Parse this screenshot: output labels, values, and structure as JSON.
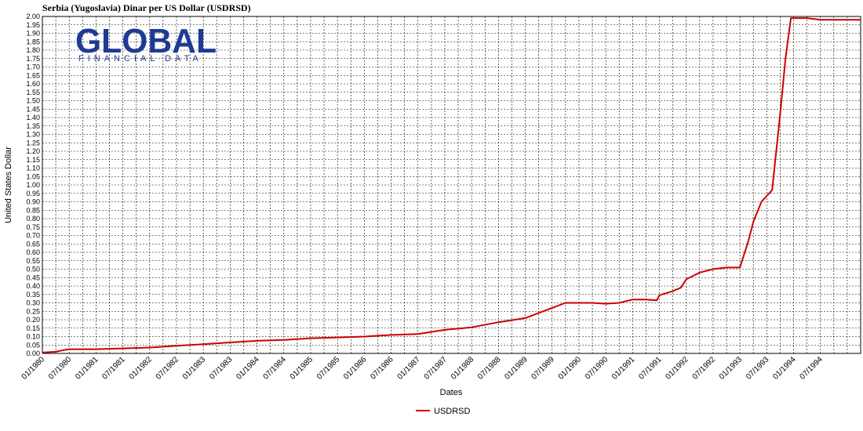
{
  "chart_data": {
    "type": "line",
    "title": "Serbia (Yugoslavia) Dinar per US Dollar (USDRSD)",
    "xlabel": "Dates",
    "ylabel": "United States Dollar",
    "y_tick_labels": [
      "0.00",
      "0.05",
      "0.10",
      "0.15",
      "0.20",
      "0.25",
      "0.30",
      "0.35",
      "0.40",
      "0.45",
      "0.50",
      "0.55",
      "0.60",
      "0.65",
      "0.70",
      "0.75",
      "0.80",
      "0.85",
      "0.90",
      "0.95",
      "1.00",
      "1.05",
      "1.10",
      "1.15",
      "1.20",
      "1.25",
      "1.30",
      "1.35",
      "1.40",
      "1.45",
      "1.50",
      "1.55",
      "1.60",
      "1.65",
      "1.70",
      "1.75",
      "1.80",
      "1.85",
      "1.90",
      "1.95",
      "2.00"
    ],
    "ylim": [
      0,
      2.0
    ],
    "xlim": [
      1980.0,
      1995.25
    ],
    "x_tick_labels": [
      "01/1980",
      "07/1980",
      "01/1981",
      "07/1981",
      "01/1982",
      "07/1982",
      "01/1983",
      "07/1983",
      "01/1984",
      "07/1984",
      "01/1985",
      "07/1985",
      "01/1986",
      "07/1986",
      "01/1987",
      "07/1987",
      "01/1988",
      "07/1988",
      "01/1989",
      "07/1989",
      "01/1990",
      "07/1990",
      "01/1991",
      "07/1991",
      "01/1992",
      "07/1992",
      "01/1993",
      "07/1993",
      "01/1994",
      "07/1994"
    ],
    "grid": true,
    "legend_position": "bottom-center",
    "series": [
      {
        "name": "USDRSD",
        "color": "#cc0000",
        "x": [
          1980.0,
          1980.25,
          1980.4,
          1980.5,
          1981.0,
          1981.5,
          1982.0,
          1982.5,
          1983.0,
          1983.5,
          1984.0,
          1984.5,
          1985.0,
          1985.5,
          1986.0,
          1986.5,
          1987.0,
          1987.5,
          1988.0,
          1988.5,
          1989.0,
          1989.25,
          1989.5,
          1989.75,
          1990.0,
          1990.25,
          1990.5,
          1990.75,
          1991.0,
          1991.25,
          1991.45,
          1991.5,
          1991.75,
          1991.9,
          1992.0,
          1992.25,
          1992.5,
          1992.75,
          1993.0,
          1993.15,
          1993.25,
          1993.4,
          1993.6,
          1993.75,
          1993.85,
          1993.95,
          1994.0,
          1994.25,
          1994.5,
          1994.75,
          1995.25
        ],
        "y": [
          0.005,
          0.01,
          0.02,
          0.025,
          0.025,
          0.03,
          0.035,
          0.045,
          0.055,
          0.065,
          0.075,
          0.08,
          0.09,
          0.095,
          0.1,
          0.11,
          0.115,
          0.14,
          0.155,
          0.185,
          0.21,
          0.24,
          0.27,
          0.3,
          0.3,
          0.3,
          0.295,
          0.3,
          0.32,
          0.32,
          0.315,
          0.345,
          0.37,
          0.39,
          0.44,
          0.48,
          0.5,
          0.51,
          0.51,
          0.66,
          0.78,
          0.9,
          0.97,
          1.42,
          1.75,
          1.99,
          1.99,
          1.99,
          1.98,
          1.98,
          1.98
        ]
      }
    ]
  },
  "logo": {
    "main": "GLOBAL",
    "sub": "FINANCIAL DATA"
  }
}
